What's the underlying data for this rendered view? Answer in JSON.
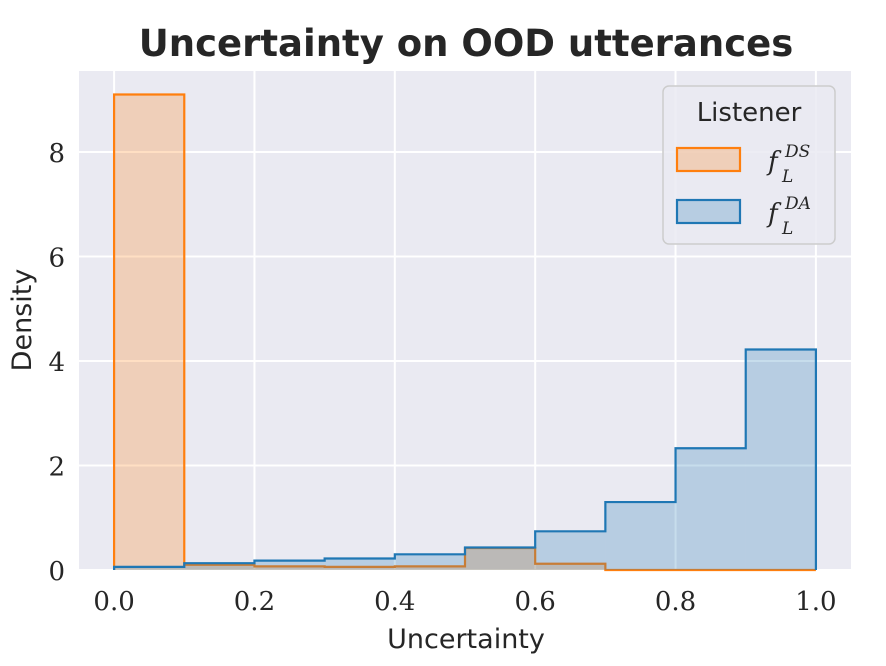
{
  "chart_data": {
    "type": "histogram",
    "title": "Uncertainty on OOD utterances",
    "xlabel": "Uncertainty",
    "ylabel": "Density",
    "xlim": [
      -0.05,
      1.05
    ],
    "ylim": [
      0,
      9.55
    ],
    "xticks": [
      0.0,
      0.2,
      0.4,
      0.6,
      0.8,
      1.0
    ],
    "xtick_labels": [
      "0.0",
      "0.2",
      "0.4",
      "0.6",
      "0.8",
      "1.0"
    ],
    "yticks": [
      0,
      2,
      4,
      6,
      8
    ],
    "ytick_labels": [
      "0",
      "2",
      "4",
      "6",
      "8"
    ],
    "grid": true,
    "bin_edges": [
      0.0,
      0.1,
      0.2,
      0.3,
      0.4,
      0.5,
      0.6,
      0.7,
      0.8,
      0.9,
      1.0
    ],
    "legend": {
      "title": "Listener",
      "placement": "top-right"
    },
    "series": [
      {
        "name": "f_L^DS",
        "label_main": "f",
        "label_sub": "L",
        "label_sup": "DS",
        "color": "#ff7f0e",
        "values": [
          9.1,
          0.1,
          0.07,
          0.06,
          0.07,
          0.42,
          0.12,
          0.0,
          0.0,
          0.0
        ]
      },
      {
        "name": "f_L^DA",
        "label_main": "f",
        "label_sub": "L",
        "label_sup": "DA",
        "color": "#1f77b4",
        "values": [
          0.06,
          0.13,
          0.18,
          0.22,
          0.3,
          0.43,
          0.74,
          1.3,
          2.33,
          4.22
        ]
      }
    ]
  }
}
